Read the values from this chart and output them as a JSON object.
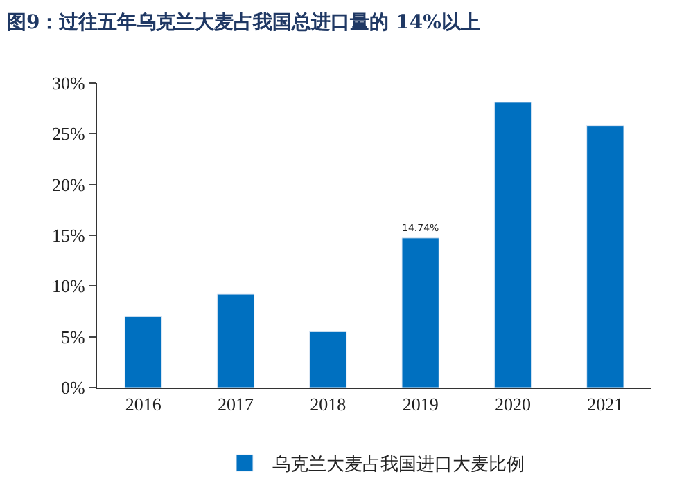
{
  "chart_data": {
    "type": "bar",
    "title": "图9：过往五年乌克兰大麦占我国总进口量的 14%以上",
    "categories": [
      "2016",
      "2017",
      "2018",
      "2019",
      "2020",
      "2021"
    ],
    "series": [
      {
        "name": "乌克兰大麦占我国进口大麦比例",
        "color": "#0070c0",
        "values": [
          7.0,
          9.2,
          5.5,
          14.74,
          28.1,
          25.8
        ],
        "value_labels": [
          null,
          null,
          null,
          "14.74%",
          null,
          null
        ]
      }
    ],
    "ylim": [
      0,
      30
    ],
    "yticks": [
      {
        "value": 0,
        "label": "0%"
      },
      {
        "value": 5,
        "label": "5%"
      },
      {
        "value": 10,
        "label": "10%"
      },
      {
        "value": 15,
        "label": "15%"
      },
      {
        "value": 20,
        "label": "20%"
      },
      {
        "value": 25,
        "label": "25%"
      },
      {
        "value": 30,
        "label": "30%"
      }
    ],
    "legend": "bottom"
  }
}
